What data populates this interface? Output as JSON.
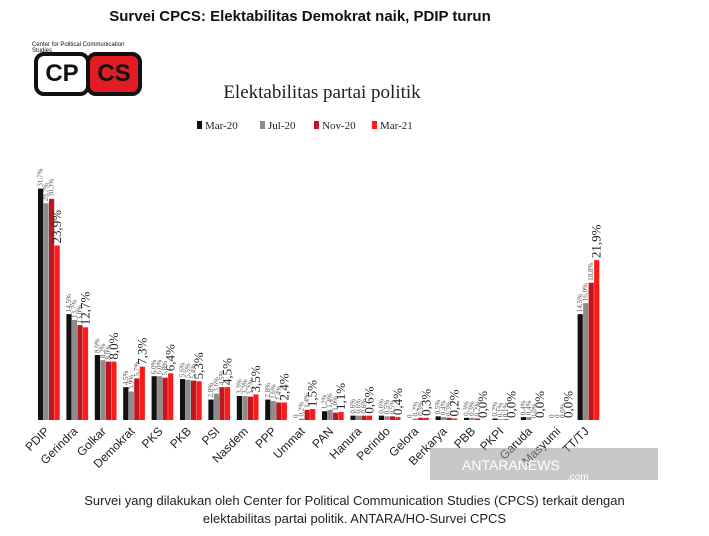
{
  "headline": "Survei CPCS: Elektabilitas Demokrat naik, PDIP turun",
  "caption_line1": "Survei yang dilakukan oleh Center for Political Communication Studies (CPCS) terkait dengan",
  "caption_line2": "elektabilitas partai politik. ANTARA/HO-Survei CPCS",
  "logo": {
    "top_text": "Center for Political Communication Studies",
    "left": "CP",
    "right": "CS"
  },
  "watermark": {
    "line1": "ANTARANEWS",
    "line2": ".com"
  },
  "chart_data": {
    "type": "bar",
    "title": "Elektabilitas partai politik",
    "legend_position": "top",
    "colors": [
      "#111111",
      "#8c8c8c",
      "#c0171d",
      "#ff1a1a"
    ],
    "categories": [
      "PDIP",
      "Gerindra",
      "Golkar",
      "Demokrat",
      "PKS",
      "PKB",
      "PSI",
      "Nasdem",
      "PPP",
      "Ummat",
      "PAN",
      "Hanura",
      "Perindo",
      "Gelora",
      "Berkarya",
      "PBB",
      "PKPI",
      "Garuda",
      "Masyumi",
      "TT/TJ"
    ],
    "series": [
      {
        "name": "Mar-20",
        "values": [
          31.7,
          14.5,
          8.9,
          4.5,
          6.0,
          5.6,
          2.8,
          3.3,
          2.8,
          0.0,
          1.2,
          0.6,
          0.6,
          0.0,
          0.5,
          0.3,
          0.2,
          0.4,
          0.0,
          14.5
        ]
      },
      {
        "name": "Jul-20",
        "values": [
          29.7,
          13.7,
          8.2,
          3.9,
          6.0,
          5.5,
          3.6,
          3.3,
          2.6,
          0.2,
          1.4,
          0.6,
          0.5,
          0.2,
          0.4,
          0.3,
          0.1,
          0.4,
          0.0,
          16.0
        ]
      },
      {
        "name": "Nov-20",
        "values": [
          30.3,
          13.0,
          8.0,
          5.7,
          5.8,
          5.4,
          4.5,
          3.2,
          2.4,
          1.4,
          1.0,
          0.6,
          0.5,
          0.3,
          0.3,
          0.2,
          0.1,
          0.0,
          0.0,
          18.8
        ]
      },
      {
        "name": "Mar-21",
        "values": [
          23.9,
          12.7,
          8.0,
          7.3,
          6.4,
          5.3,
          4.5,
          3.5,
          2.4,
          1.5,
          1.1,
          0.6,
          0.4,
          0.3,
          0.2,
          0.0,
          0.0,
          0.0,
          0.0,
          21.9
        ]
      }
    ],
    "data_labels": [
      [
        "31,7%",
        "29,7%",
        "30,3%",
        "23,9%"
      ],
      [
        "14,5%",
        "13,7%",
        "13,0%",
        "12,7%"
      ],
      [
        "8,9%",
        "8,2%",
        "8,0%",
        "8,0%"
      ],
      [
        "4,5%",
        "3,9%",
        "5,7%",
        "7,3%"
      ],
      [
        "6,0%",
        "6,0%",
        "5,8%",
        "6,4%"
      ],
      [
        "5,6%",
        "5,5%",
        "5,4%",
        "5,3%"
      ],
      [
        "2,8%",
        "3,6%",
        "4,5%",
        "4,5%"
      ],
      [
        "3,3%",
        "3,3%",
        "3,2%",
        "3,5%"
      ],
      [
        "2,8%",
        "2,6%",
        "2,4%",
        "2,4%"
      ],
      [
        "0",
        "0,2%",
        "1,4%",
        "1,5%"
      ],
      [
        "1,2%",
        "1,4%",
        "1,0%",
        "1,1%"
      ],
      [
        "0,6%",
        "0,6%",
        "0,6%",
        "0,6%"
      ],
      [
        "0,6%",
        "0,5%",
        "0,5%",
        "0,4%"
      ],
      [
        "0",
        "0,2%",
        "0,3%",
        "0,3%"
      ],
      [
        "0,5%",
        "0,4%",
        "0,3%",
        "0,2%"
      ],
      [
        "0,3%",
        "0,3%",
        "0,2%",
        "0,0%"
      ],
      [
        "0,2%",
        "0,1%",
        "0,1%",
        "0,0%"
      ],
      [
        "0,4%",
        "0,4%",
        "0,0%",
        "0,0%"
      ],
      [
        "0",
        "0",
        "0,0%",
        "0,0%"
      ],
      [
        "14,5%",
        "16,0%",
        "18,8%",
        "21,9%"
      ]
    ],
    "emphasized_series_index": 3,
    "ylim": [
      0,
      33
    ],
    "grid": false
  }
}
